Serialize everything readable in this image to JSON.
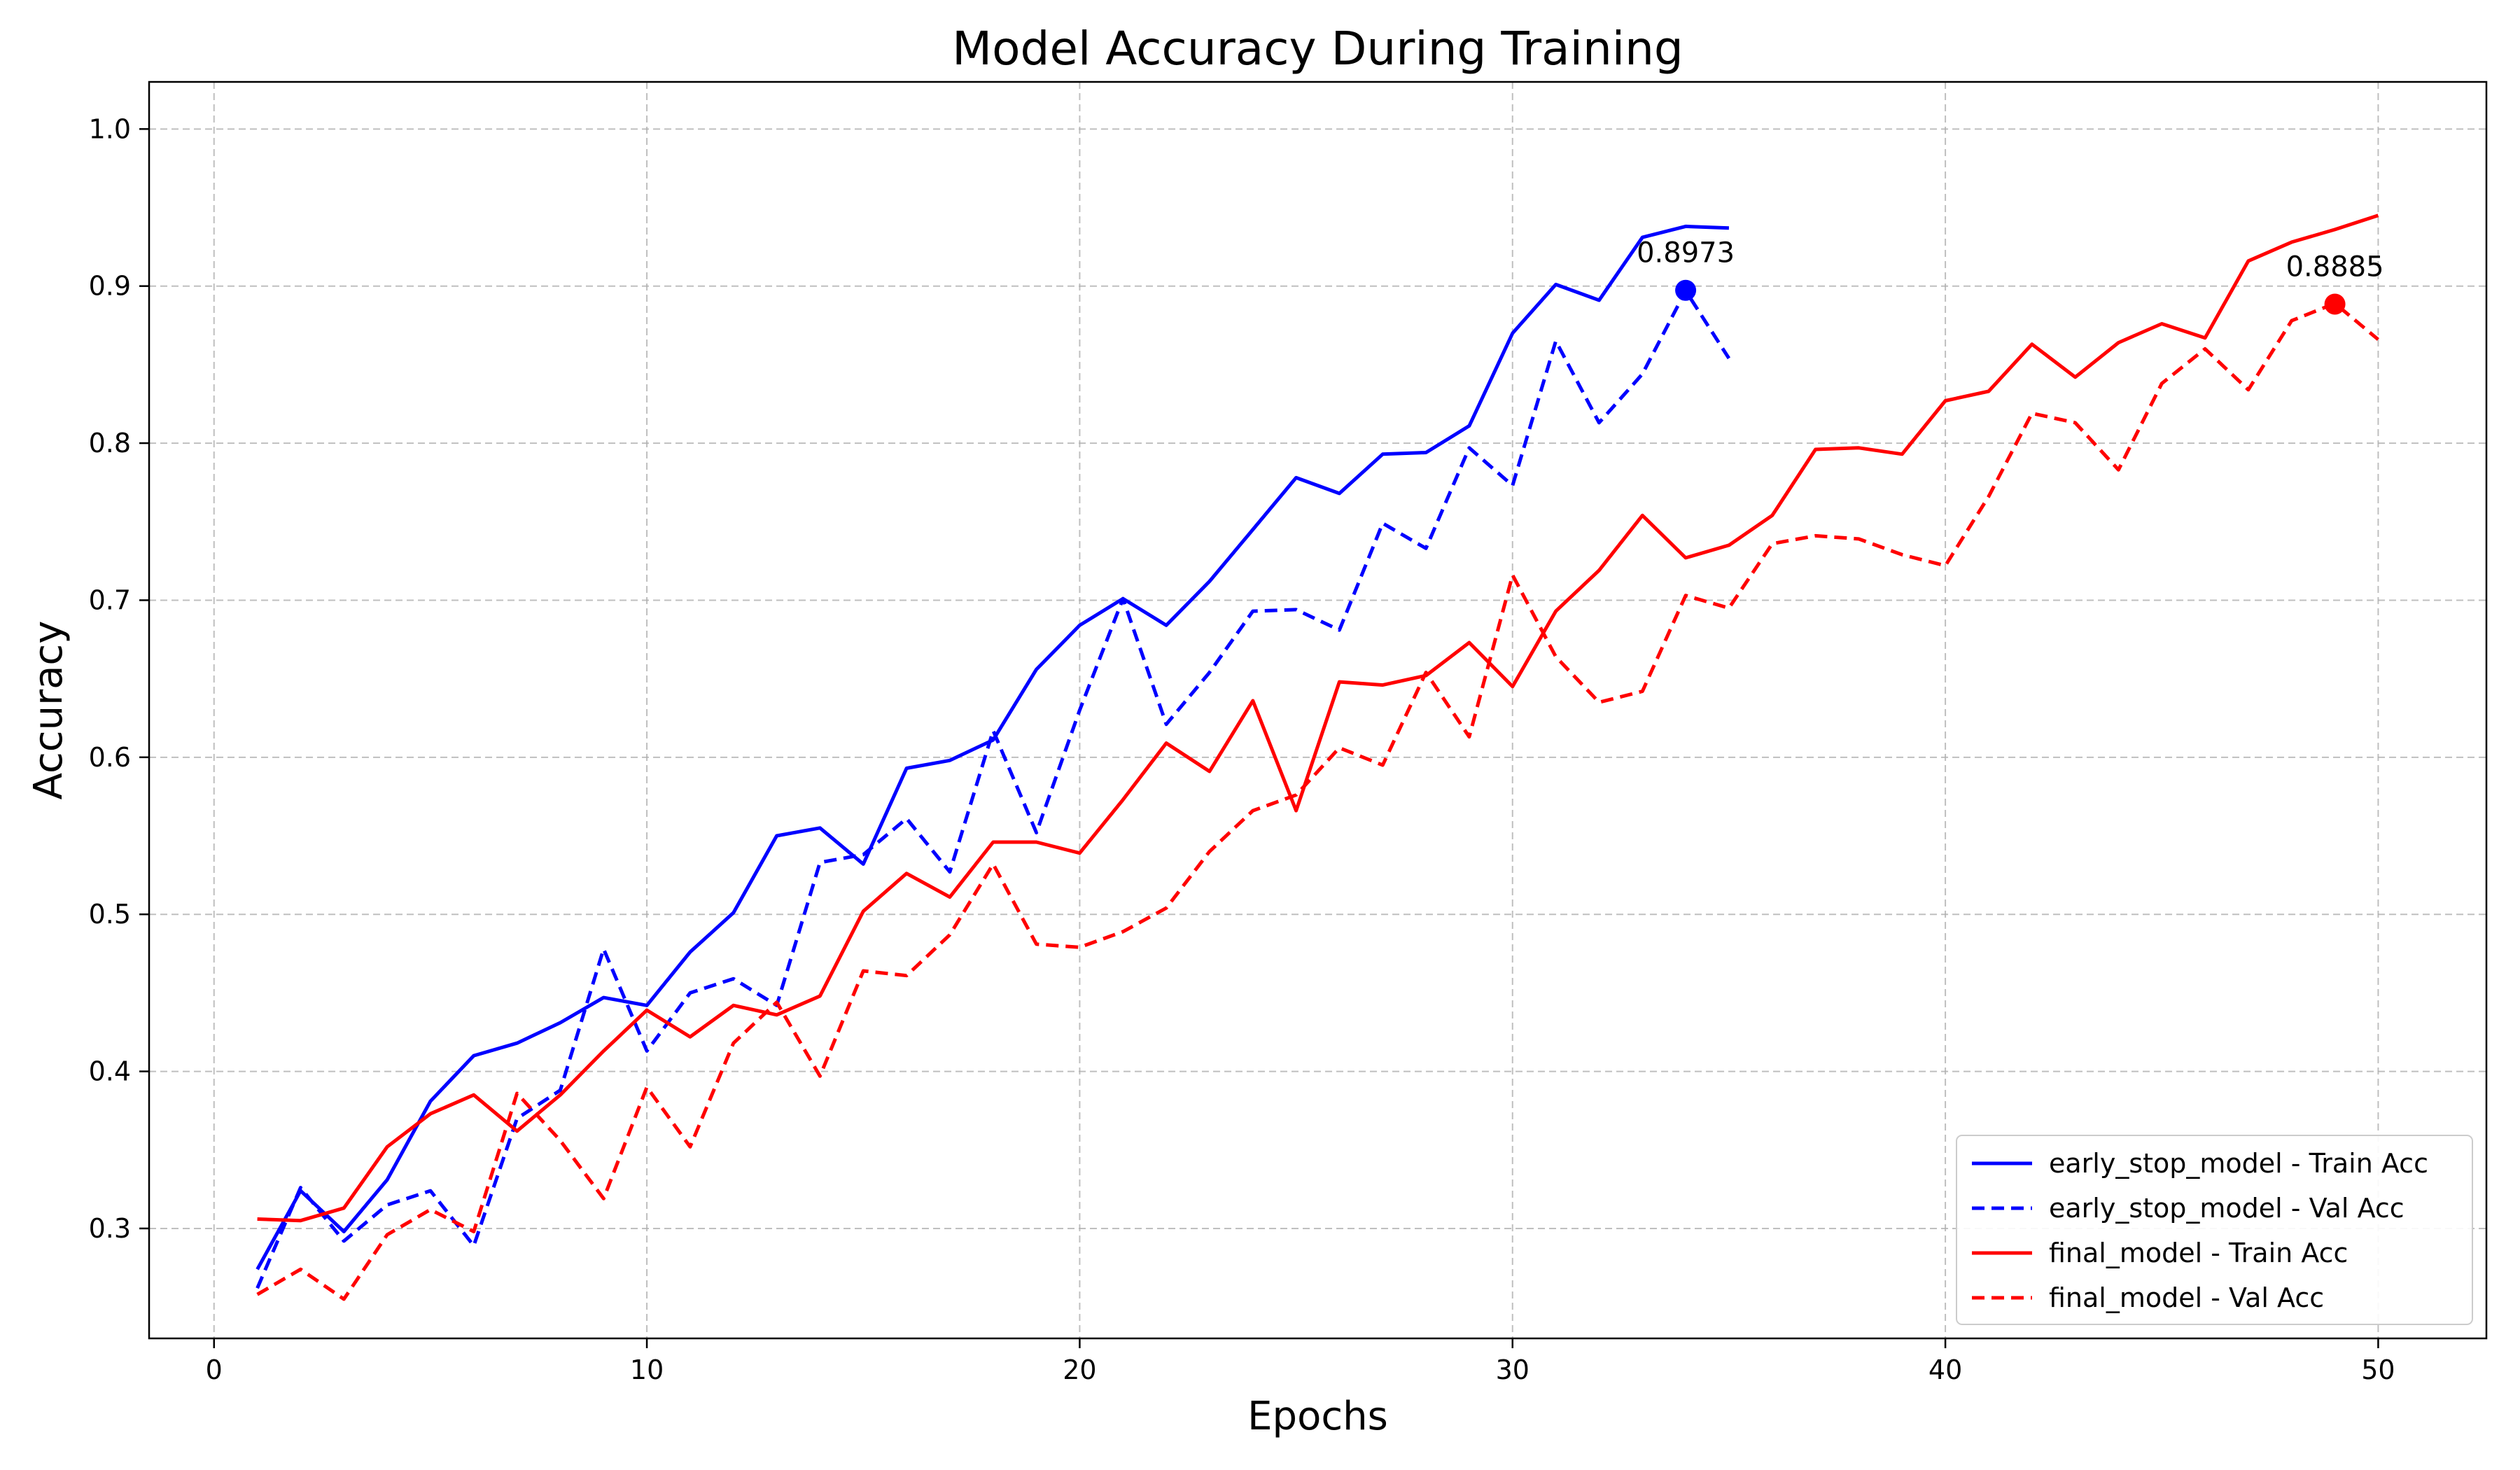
{
  "chart_data": {
    "type": "line",
    "title": "Model Accuracy During Training",
    "xlabel": "Epochs",
    "ylabel": "Accuracy",
    "xlim": [
      -1.5,
      52.5
    ],
    "ylim": [
      0.23,
      1.03
    ],
    "xticks": [
      "0",
      "10",
      "20",
      "30",
      "40",
      "50"
    ],
    "yticks": [
      "0.3",
      "0.4",
      "0.5",
      "0.6",
      "0.7",
      "0.8",
      "0.9",
      "1.0"
    ],
    "grid": true,
    "legend_position": "lower-right",
    "series": [
      {
        "name": "early_stop_model - Train Acc",
        "color": "#0000ff",
        "style": "solid",
        "x": [
          1,
          2,
          3,
          4,
          5,
          6,
          7,
          8,
          9,
          10,
          11,
          12,
          13,
          14,
          15,
          16,
          17,
          18,
          19,
          20,
          21,
          22,
          23,
          24,
          25,
          26,
          27,
          28,
          29,
          30,
          31,
          32,
          33,
          34,
          35
        ],
        "values": [
          0.274,
          0.324,
          0.298,
          0.331,
          0.381,
          0.41,
          0.418,
          0.431,
          0.447,
          0.442,
          0.476,
          0.501,
          0.55,
          0.555,
          0.532,
          0.593,
          0.598,
          0.611,
          0.656,
          0.684,
          0.701,
          0.684,
          0.712,
          0.745,
          0.778,
          0.768,
          0.793,
          0.794,
          0.811,
          0.87,
          0.901,
          0.891,
          0.931,
          0.938,
          0.937
        ]
      },
      {
        "name": "early_stop_model - Val Acc",
        "color": "#0000ff",
        "style": "dashed",
        "x": [
          1,
          2,
          3,
          4,
          5,
          6,
          7,
          8,
          9,
          10,
          11,
          12,
          13,
          14,
          15,
          16,
          17,
          18,
          19,
          20,
          21,
          22,
          23,
          24,
          25,
          26,
          27,
          28,
          29,
          30,
          31,
          32,
          33,
          34,
          35
        ],
        "values": [
          0.262,
          0.326,
          0.292,
          0.315,
          0.324,
          0.289,
          0.37,
          0.388,
          0.478,
          0.413,
          0.45,
          0.459,
          0.442,
          0.533,
          0.538,
          0.561,
          0.527,
          0.617,
          0.552,
          0.63,
          0.701,
          0.621,
          0.654,
          0.693,
          0.694,
          0.681,
          0.749,
          0.733,
          0.797,
          0.773,
          0.865,
          0.813,
          0.844,
          0.897,
          0.854
        ]
      },
      {
        "name": "final_model - Train Acc",
        "color": "#ff0000",
        "style": "solid",
        "x": [
          1,
          2,
          3,
          4,
          5,
          6,
          7,
          8,
          9,
          10,
          11,
          12,
          13,
          14,
          15,
          16,
          17,
          18,
          19,
          20,
          21,
          22,
          23,
          24,
          25,
          26,
          27,
          28,
          29,
          30,
          31,
          32,
          33,
          34,
          35,
          36,
          37,
          38,
          39,
          40,
          41,
          42,
          43,
          44,
          45,
          46,
          47,
          48,
          49,
          50
        ],
        "values": [
          0.306,
          0.305,
          0.313,
          0.352,
          0.373,
          0.385,
          0.362,
          0.385,
          0.413,
          0.439,
          0.422,
          0.442,
          0.436,
          0.448,
          0.502,
          0.526,
          0.511,
          0.546,
          0.546,
          0.539,
          0.573,
          0.609,
          0.591,
          0.636,
          0.566,
          0.648,
          0.646,
          0.652,
          0.673,
          0.645,
          0.693,
          0.719,
          0.754,
          0.727,
          0.735,
          0.754,
          0.796,
          0.797,
          0.793,
          0.827,
          0.833,
          0.863,
          0.842,
          0.864,
          0.876,
          0.867,
          0.916,
          0.928,
          0.936,
          0.945
        ]
      },
      {
        "name": "final_model - Val Acc",
        "color": "#ff0000",
        "style": "dashed",
        "x": [
          1,
          2,
          3,
          4,
          5,
          6,
          7,
          8,
          9,
          10,
          11,
          12,
          13,
          14,
          15,
          16,
          17,
          18,
          19,
          20,
          21,
          22,
          23,
          24,
          25,
          26,
          27,
          28,
          29,
          30,
          31,
          32,
          33,
          34,
          35,
          36,
          37,
          38,
          39,
          40,
          41,
          42,
          43,
          44,
          45,
          46,
          47,
          48,
          49,
          50
        ],
        "values": [
          0.258,
          0.274,
          0.255,
          0.296,
          0.312,
          0.298,
          0.386,
          0.356,
          0.319,
          0.39,
          0.352,
          0.418,
          0.444,
          0.397,
          0.464,
          0.461,
          0.487,
          0.532,
          0.481,
          0.479,
          0.489,
          0.504,
          0.54,
          0.566,
          0.576,
          0.606,
          0.595,
          0.654,
          0.613,
          0.716,
          0.664,
          0.635,
          0.642,
          0.703,
          0.695,
          0.736,
          0.741,
          0.739,
          0.729,
          0.722,
          0.766,
          0.819,
          0.813,
          0.783,
          0.838,
          0.86,
          0.834,
          0.878,
          0.889,
          0.866
        ]
      }
    ],
    "annotations": [
      {
        "x": 34,
        "y": 0.8973,
        "label": "0.8973",
        "color": "#0000ff"
      },
      {
        "x": 49,
        "y": 0.8885,
        "label": "0.8885",
        "color": "#ff0000"
      }
    ]
  }
}
